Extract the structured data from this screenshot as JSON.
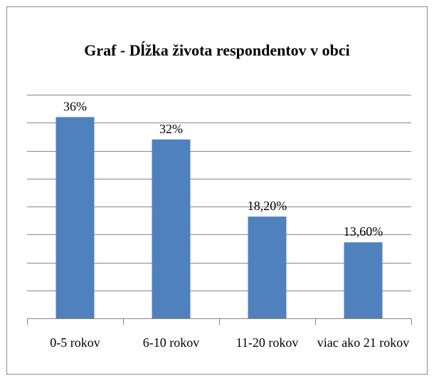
{
  "chart_data": {
    "type": "bar",
    "title": "Graf - Dĺžka života respondentov v obci",
    "categories": [
      "0-5 rokov",
      "6-10 rokov",
      "11-20 rokov",
      "viac ako 21 rokov"
    ],
    "values": [
      36,
      32,
      18.2,
      13.6
    ],
    "value_labels": [
      "36%",
      "32%",
      "18,20%",
      "13,60%"
    ],
    "color": "#4f81bd",
    "ylim": [
      0,
      40
    ],
    "yticks": [
      0,
      5,
      10,
      15,
      20,
      25,
      30,
      35,
      40
    ],
    "grid": true
  }
}
